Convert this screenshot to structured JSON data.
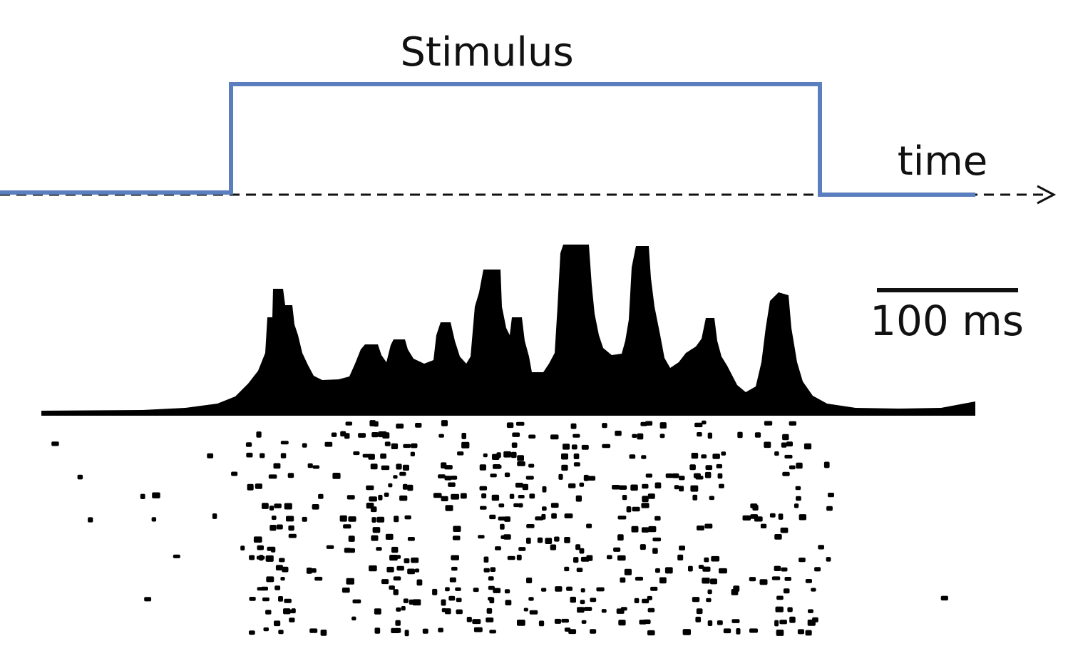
{
  "stimulus_label": "Stimulus",
  "time_label": "time",
  "scalebar_label": "100 ms",
  "colors": {
    "stimulus_trace": "#5b7fbe",
    "time_axis": "#111111",
    "psth_fill": "#000000",
    "raster_dot": "#000000",
    "background": "#ffffff"
  }
}
